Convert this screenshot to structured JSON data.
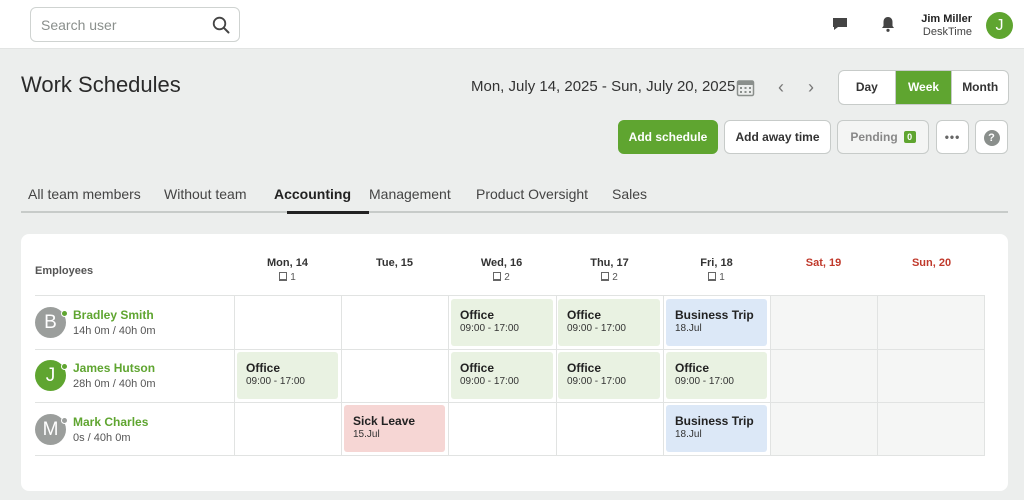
{
  "search": {
    "placeholder": "Search user"
  },
  "user": {
    "name": "Jim Miller",
    "company": "DeskTime",
    "initial": "J"
  },
  "page_title": "Work Schedules",
  "date_range": "Mon, July 14, 2025 - Sun, July 20, 2025",
  "views": [
    {
      "label": "Day",
      "active": false
    },
    {
      "label": "Week",
      "active": true
    },
    {
      "label": "Month",
      "active": false
    }
  ],
  "buttons": {
    "add_schedule": "Add schedule",
    "add_away": "Add away time",
    "pending": "Pending",
    "pending_count": "0",
    "more": "•••",
    "help": "?"
  },
  "tabs": [
    "All team members",
    "Without team",
    "Accounting",
    "Management",
    "Product Oversight",
    "Sales"
  ],
  "active_tab": "Accounting",
  "table": {
    "employees_header": "Employees",
    "days": [
      {
        "label": "Mon, 14",
        "count": "1",
        "weekend": false
      },
      {
        "label": "Tue, 15",
        "count": "",
        "weekend": false
      },
      {
        "label": "Wed, 16",
        "count": "2",
        "weekend": false
      },
      {
        "label": "Thu, 17",
        "count": "2",
        "weekend": false
      },
      {
        "label": "Fri, 18",
        "count": "1",
        "weekend": false
      },
      {
        "label": "Sat, 19",
        "count": "",
        "weekend": true
      },
      {
        "label": "Sun, 20",
        "count": "",
        "weekend": true
      }
    ],
    "employees": [
      {
        "initial": "B",
        "name": "Bradley Smith",
        "hours": "14h 0m / 40h 0m",
        "avatar_color": "#9b9e9c",
        "online": true
      },
      {
        "initial": "J",
        "name": "James Hutson",
        "hours": "28h 0m / 40h 0m",
        "avatar_color": "#5fa530",
        "online": true
      },
      {
        "initial": "M",
        "name": "Mark Charles",
        "hours": "0s / 40h 0m",
        "avatar_color": "#9b9e9c",
        "online": false
      }
    ],
    "events": [
      {
        "title": "Office",
        "sub": "09:00 - 17:00",
        "kind": "office"
      },
      {
        "title": "Office",
        "sub": "09:00 - 17:00",
        "kind": "office"
      },
      {
        "title": "Business Trip",
        "sub": "18.Jul",
        "kind": "trip"
      },
      {
        "title": "Office",
        "sub": "09:00 - 17:00",
        "kind": "office"
      },
      {
        "title": "Office",
        "sub": "09:00 - 17:00",
        "kind": "office"
      },
      {
        "title": "Office",
        "sub": "09:00 - 17:00",
        "kind": "office"
      },
      {
        "title": "Office",
        "sub": "09:00 - 17:00",
        "kind": "office"
      },
      {
        "title": "Sick Leave",
        "sub": "15.Jul",
        "kind": "sick"
      },
      {
        "title": "Business Trip",
        "sub": "18.Jul",
        "kind": "trip"
      }
    ]
  },
  "colors": {
    "accent": "#5fa530",
    "weekend": "#c0392b",
    "office": "#e9f2e2",
    "trip": "#dce8f7",
    "sick": "#f6d6d4"
  }
}
